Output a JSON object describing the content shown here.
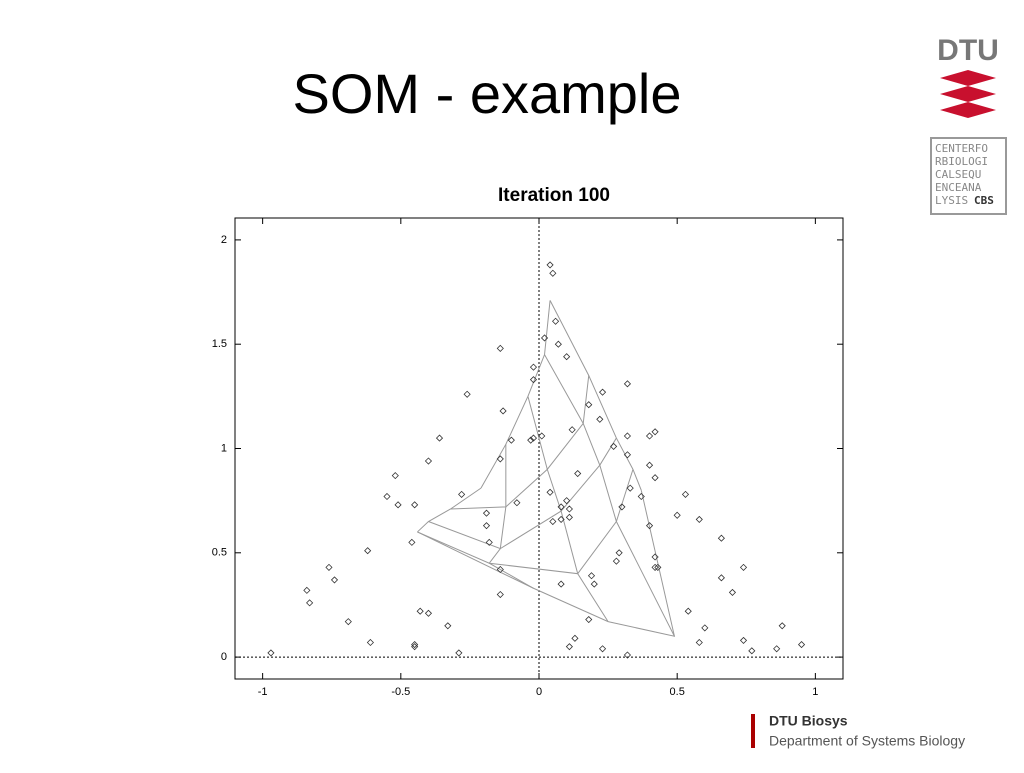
{
  "slide_title": "SOM - example",
  "logo": {
    "name": "DTU",
    "cbs_lines": [
      "CENTERFO",
      "RBIOLOGI",
      "CALSEQU",
      "ENCEANA",
      "LYSIS"
    ],
    "cbs": "CBS"
  },
  "footer": {
    "unit": "DTU Biosys",
    "department": "Department of Systems Biology"
  },
  "chart_data": {
    "type": "scatter",
    "title": "Iteration 100",
    "xlim": [
      -1.1,
      1.1
    ],
    "ylim": [
      -0.105,
      2.105
    ],
    "xticks": [
      -1,
      -0.5,
      0,
      0.5,
      1
    ],
    "yticks": [
      0,
      0.5,
      1,
      1.5,
      2
    ],
    "x": [
      0.04,
      0.05,
      0.02,
      0.06,
      -0.14,
      0.07,
      0.1,
      -0.02,
      -0.02,
      0.32,
      -0.26,
      0.23,
      -0.13,
      0.18,
      0.22,
      0.12,
      0.01,
      -0.1,
      -0.36,
      0.32,
      0.42,
      0.4,
      -0.03,
      -0.02,
      0.27,
      -0.14,
      0.32,
      0.4,
      -0.4,
      0.42,
      0.14,
      0.33,
      -0.52,
      0.37,
      0.53,
      -0.28,
      0.04,
      -0.55,
      0.1,
      0.11,
      0.08,
      -0.08,
      -0.51,
      -0.45,
      -0.19,
      0.3,
      0.5,
      0.58,
      0.05,
      0.08,
      0.11,
      0.4,
      -0.19,
      0.66,
      -0.18,
      -0.46,
      -0.62,
      0.29,
      0.42,
      0.28,
      -0.14,
      0.42,
      0.43,
      -0.76,
      0.74,
      0.66,
      -0.74,
      0.19,
      0.2,
      0.08,
      -0.84,
      0.7,
      -0.14,
      -0.83,
      0.54,
      -0.43,
      -0.4,
      -0.69,
      0.18,
      0.88,
      -0.33,
      0.6,
      0.13,
      0.74,
      0.58,
      -0.61,
      -0.45,
      -0.45,
      0.11,
      0.23,
      0.95,
      0.86,
      0.77,
      -0.97,
      -0.29,
      0.32
    ],
    "values": [
      1.88,
      1.84,
      1.53,
      1.61,
      1.48,
      1.5,
      1.44,
      1.39,
      1.33,
      1.31,
      1.26,
      1.27,
      1.18,
      1.21,
      1.14,
      1.09,
      1.06,
      1.04,
      1.05,
      1.06,
      1.08,
      1.06,
      1.04,
      1.05,
      1.01,
      0.95,
      0.97,
      0.92,
      0.94,
      0.86,
      0.88,
      0.81,
      0.87,
      0.77,
      0.78,
      0.78,
      0.79,
      0.77,
      0.75,
      0.71,
      0.72,
      0.74,
      0.73,
      0.73,
      0.69,
      0.72,
      0.68,
      0.66,
      0.65,
      0.66,
      0.67,
      0.63,
      0.63,
      0.57,
      0.55,
      0.55,
      0.51,
      0.5,
      0.48,
      0.46,
      0.42,
      0.43,
      0.43,
      0.43,
      0.43,
      0.38,
      0.37,
      0.39,
      0.35,
      0.35,
      0.32,
      0.31,
      0.3,
      0.26,
      0.22,
      0.22,
      0.21,
      0.17,
      0.18,
      0.15,
      0.15,
      0.14,
      0.09,
      0.08,
      0.07,
      0.07,
      0.06,
      0.05,
      0.05,
      0.04,
      0.06,
      0.04,
      0.03,
      0.02,
      0.02,
      0.01
    ],
    "grid": [
      {
        "x": [
          -0.21,
          -0.12,
          -0.04,
          0.02,
          0.04
        ],
        "y": [
          0.81,
          1.02,
          1.25,
          1.45,
          1.71
        ]
      },
      {
        "x": [
          -0.32,
          -0.12,
          0.03,
          0.16,
          0.18
        ],
        "y": [
          0.71,
          0.72,
          0.9,
          1.12,
          1.35
        ]
      },
      {
        "x": [
          -0.4,
          -0.14,
          0.08,
          0.22,
          0.28
        ],
        "y": [
          0.65,
          0.52,
          0.7,
          0.92,
          1.05
        ]
      },
      {
        "x": [
          -0.44,
          -0.18,
          0.14,
          0.28,
          0.34
        ],
        "y": [
          0.6,
          0.45,
          0.4,
          0.65,
          0.9
        ]
      },
      {
        "x": [
          -0.44,
          -0.02,
          0.25,
          0.49,
          0.37
        ],
        "y": [
          0.6,
          0.33,
          0.17,
          0.1,
          0.8
        ]
      }
    ]
  }
}
